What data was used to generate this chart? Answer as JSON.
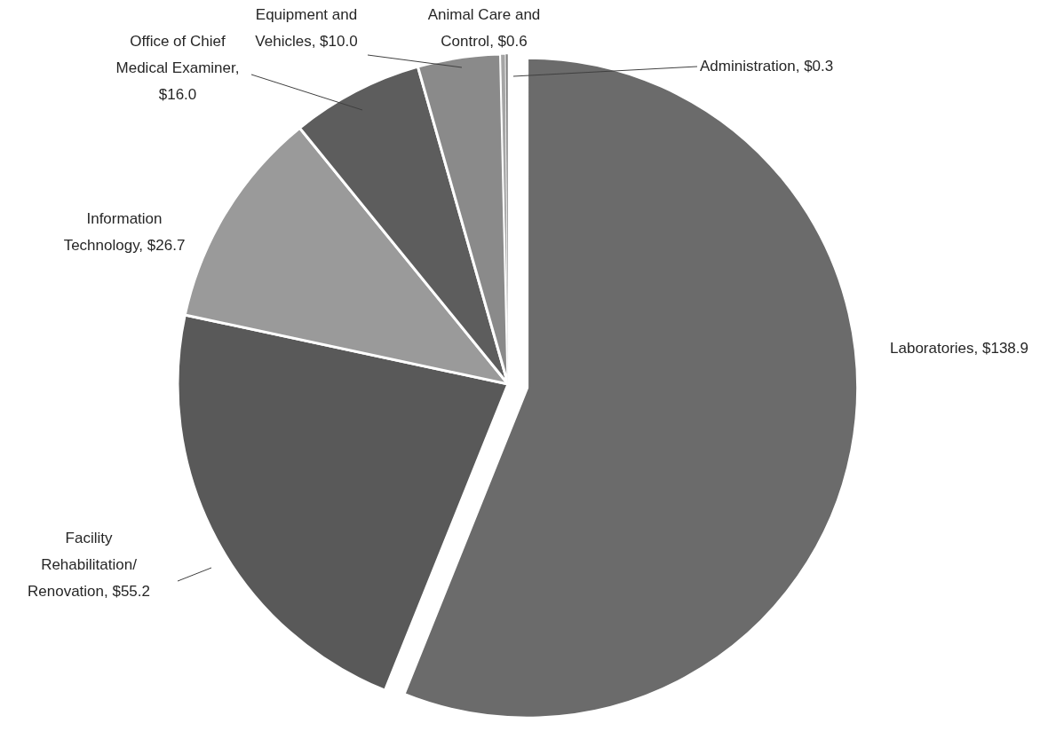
{
  "chart_data": {
    "type": "pie",
    "categories": [
      "Laboratories, $138.9",
      "Facility Rehabilitation/ Renovation, $55.2",
      "Information Technology, $26.7",
      "Office of Chief Medical Examiner, $16.0",
      "Equipment and Vehicles, $10.0",
      "Animal Care and Control, $0.6",
      "Administration, $0.3"
    ],
    "values": [
      138.9,
      55.2,
      26.7,
      16.0,
      10.0,
      0.6,
      0.3
    ],
    "colors": [
      "#6b6b6b",
      "#595959",
      "#9a9a9a",
      "#5d5d5d",
      "#8a8a8a",
      "#a5a5a5",
      "#7f7f7f"
    ]
  }
}
